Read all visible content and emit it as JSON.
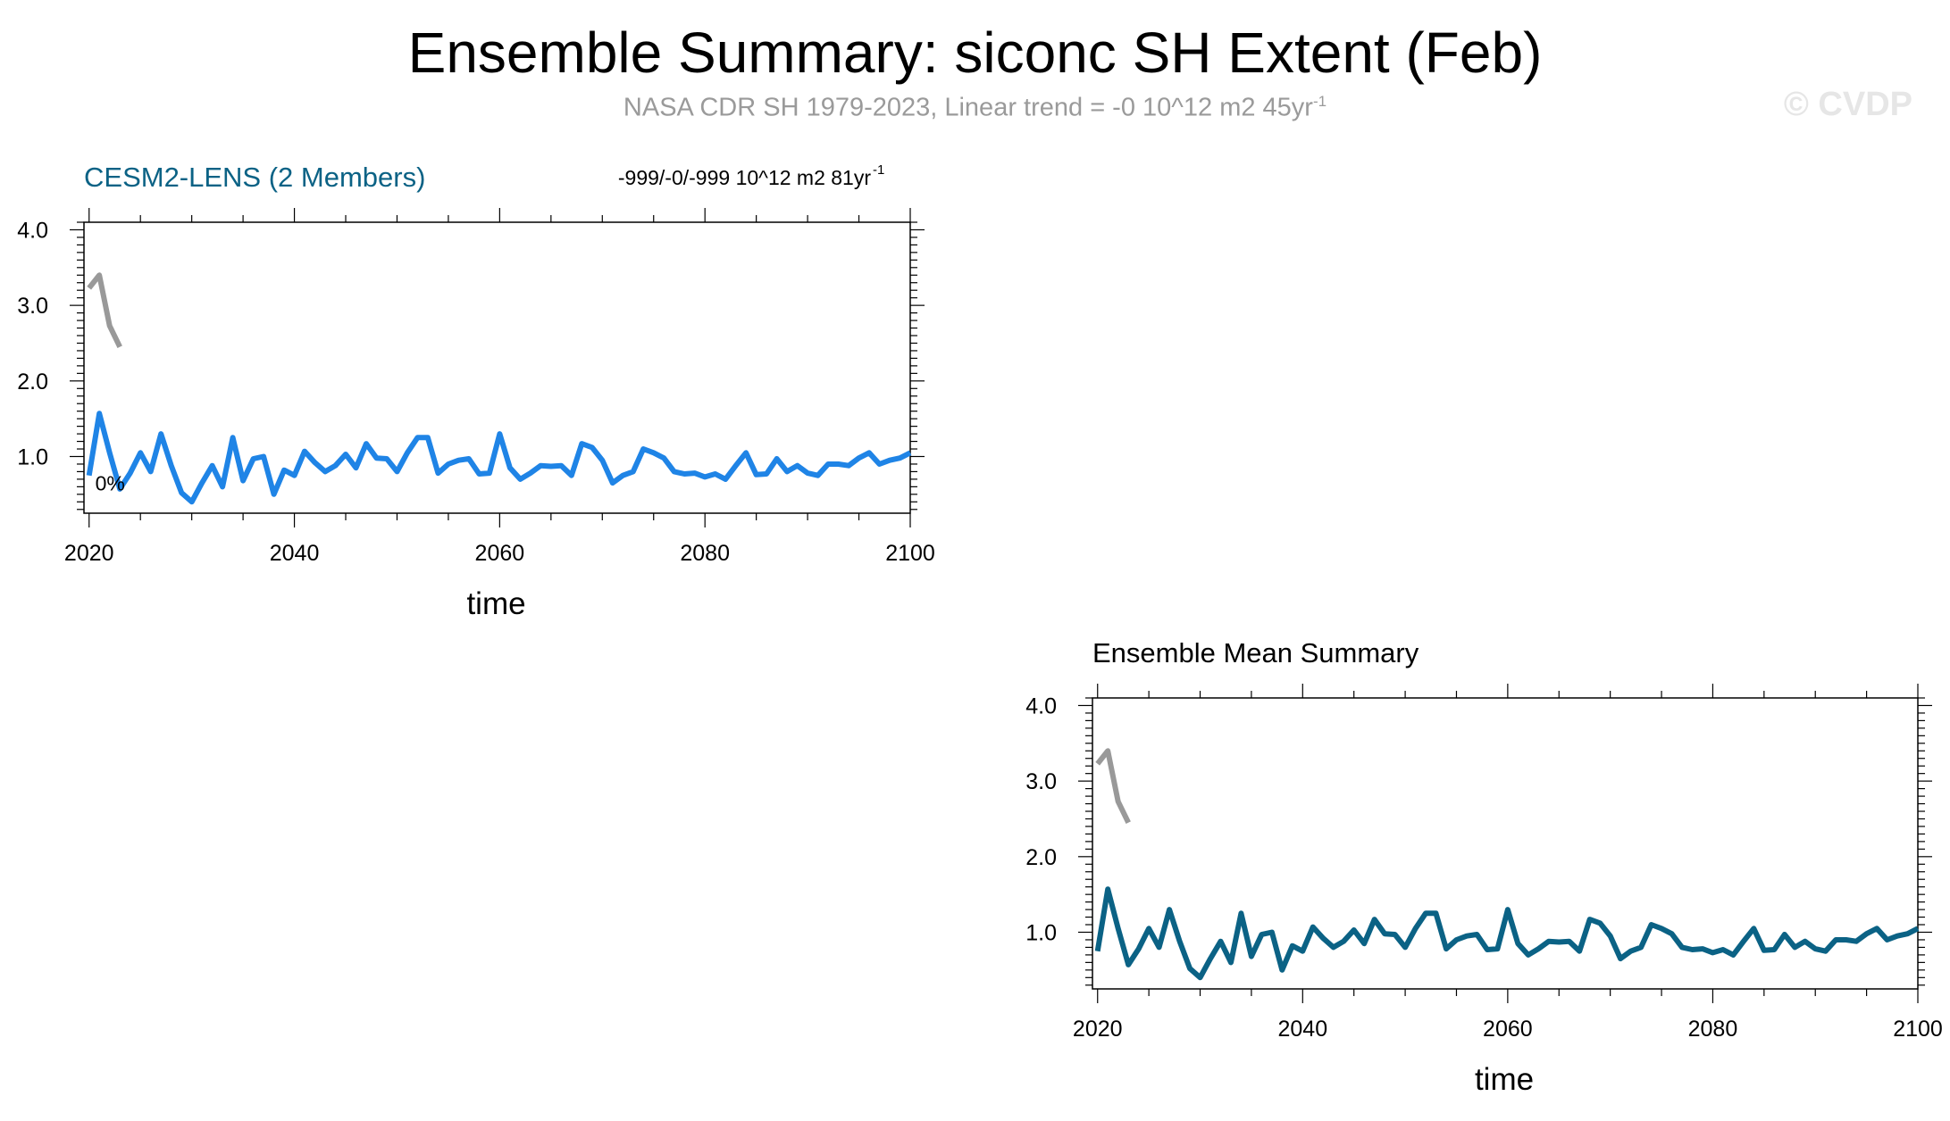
{
  "header": {
    "title": "Ensemble Summary: siconc SH Extent (Feb)",
    "subtitle_main": "NASA CDR SH 1979-2023, Linear trend = -0 10^12 m2 45yr",
    "subtitle_sup": "-1",
    "watermark": "© CVDP"
  },
  "colors": {
    "member_line": "#1f84e6",
    "mean_line": "#0b6285",
    "obs_line": "#999999",
    "member_title": "#0b6285",
    "subtitle": "#9a9a9a"
  },
  "chart_data": [
    {
      "type": "line",
      "title": "CESM2-LENS (2 Members)",
      "trend_text": "-999/-0/-999 10^12 m2 81yr",
      "trend_sup": "-1",
      "percent_annotation": "0%",
      "xlabel": "time",
      "ylabel": "",
      "xlim": [
        2019.5,
        2100
      ],
      "ylim": [
        0.25,
        4.1
      ],
      "xticks": [
        2020,
        2040,
        2060,
        2080,
        2100
      ],
      "yticks": [
        1.0,
        2.0,
        3.0,
        4.0
      ],
      "ytick_labels": [
        "1.0",
        "2.0",
        "3.0",
        "4.0"
      ],
      "series": [
        {
          "name": "CESM2-LENS",
          "color": "#1f84e6",
          "x": [
            2020,
            2021,
            2022,
            2023,
            2024,
            2025,
            2026,
            2027,
            2028,
            2029,
            2030,
            2031,
            2032,
            2033,
            2034,
            2035,
            2036,
            2037,
            2038,
            2039,
            2040,
            2041,
            2042,
            2043,
            2044,
            2045,
            2046,
            2047,
            2048,
            2049,
            2050,
            2051,
            2052,
            2053,
            2054,
            2055,
            2056,
            2057,
            2058,
            2059,
            2060,
            2061,
            2062,
            2063,
            2064,
            2065,
            2066,
            2067,
            2068,
            2069,
            2070,
            2071,
            2072,
            2073,
            2074,
            2075,
            2076,
            2077,
            2078,
            2079,
            2080,
            2081,
            2082,
            2083,
            2084,
            2085,
            2086,
            2087,
            2088,
            2089,
            2090,
            2091,
            2092,
            2093,
            2094,
            2095,
            2096,
            2097,
            2098,
            2099,
            2100
          ],
          "values": [
            0.75,
            1.57,
            1.05,
            0.57,
            0.78,
            1.05,
            0.8,
            1.3,
            0.88,
            0.52,
            0.4,
            0.65,
            0.88,
            0.6,
            1.25,
            0.68,
            0.97,
            1.0,
            0.5,
            0.82,
            0.75,
            1.07,
            0.92,
            0.8,
            0.88,
            1.03,
            0.85,
            1.17,
            0.98,
            0.97,
            0.8,
            1.05,
            1.25,
            1.25,
            0.78,
            0.9,
            0.95,
            0.97,
            0.77,
            0.78,
            1.3,
            0.85,
            0.7,
            0.78,
            0.88,
            0.87,
            0.88,
            0.75,
            1.17,
            1.12,
            0.95,
            0.65,
            0.75,
            0.8,
            1.1,
            1.05,
            0.98,
            0.8,
            0.77,
            0.78,
            0.73,
            0.77,
            0.7,
            0.88,
            1.05,
            0.76,
            0.77,
            0.97,
            0.8,
            0.88,
            0.78,
            0.75,
            0.9,
            0.9,
            0.88,
            0.98,
            1.05,
            0.9,
            0.95,
            0.98,
            1.05
          ]
        },
        {
          "name": "NASA CDR SH",
          "color": "#999999",
          "x": [
            2020,
            2021,
            2022,
            2023
          ],
          "values": [
            3.23,
            3.4,
            2.73,
            2.45
          ]
        }
      ]
    },
    {
      "type": "line",
      "title": "Ensemble Mean Summary",
      "xlabel": "time",
      "ylabel": "",
      "xlim": [
        2019.5,
        2100
      ],
      "ylim": [
        0.25,
        4.1
      ],
      "xticks": [
        2020,
        2040,
        2060,
        2080,
        2100
      ],
      "yticks": [
        1.0,
        2.0,
        3.0,
        4.0
      ],
      "ytick_labels": [
        "1.0",
        "2.0",
        "3.0",
        "4.0"
      ],
      "series": [
        {
          "name": "Ensemble Mean",
          "color": "#0b6285",
          "x": [
            2020,
            2021,
            2022,
            2023,
            2024,
            2025,
            2026,
            2027,
            2028,
            2029,
            2030,
            2031,
            2032,
            2033,
            2034,
            2035,
            2036,
            2037,
            2038,
            2039,
            2040,
            2041,
            2042,
            2043,
            2044,
            2045,
            2046,
            2047,
            2048,
            2049,
            2050,
            2051,
            2052,
            2053,
            2054,
            2055,
            2056,
            2057,
            2058,
            2059,
            2060,
            2061,
            2062,
            2063,
            2064,
            2065,
            2066,
            2067,
            2068,
            2069,
            2070,
            2071,
            2072,
            2073,
            2074,
            2075,
            2076,
            2077,
            2078,
            2079,
            2080,
            2081,
            2082,
            2083,
            2084,
            2085,
            2086,
            2087,
            2088,
            2089,
            2090,
            2091,
            2092,
            2093,
            2094,
            2095,
            2096,
            2097,
            2098,
            2099,
            2100
          ],
          "values": [
            0.75,
            1.57,
            1.05,
            0.57,
            0.78,
            1.05,
            0.8,
            1.3,
            0.88,
            0.52,
            0.4,
            0.65,
            0.88,
            0.6,
            1.25,
            0.68,
            0.97,
            1.0,
            0.5,
            0.82,
            0.75,
            1.07,
            0.92,
            0.8,
            0.88,
            1.03,
            0.85,
            1.17,
            0.98,
            0.97,
            0.8,
            1.05,
            1.25,
            1.25,
            0.78,
            0.9,
            0.95,
            0.97,
            0.77,
            0.78,
            1.3,
            0.85,
            0.7,
            0.78,
            0.88,
            0.87,
            0.88,
            0.75,
            1.17,
            1.12,
            0.95,
            0.65,
            0.75,
            0.8,
            1.1,
            1.05,
            0.98,
            0.8,
            0.77,
            0.78,
            0.73,
            0.77,
            0.7,
            0.88,
            1.05,
            0.76,
            0.77,
            0.97,
            0.8,
            0.88,
            0.78,
            0.75,
            0.9,
            0.9,
            0.88,
            0.98,
            1.05,
            0.9,
            0.95,
            0.98,
            1.05
          ]
        },
        {
          "name": "NASA CDR SH",
          "color": "#999999",
          "x": [
            2020,
            2021,
            2022,
            2023
          ],
          "values": [
            3.23,
            3.4,
            2.73,
            2.45
          ]
        }
      ]
    }
  ]
}
